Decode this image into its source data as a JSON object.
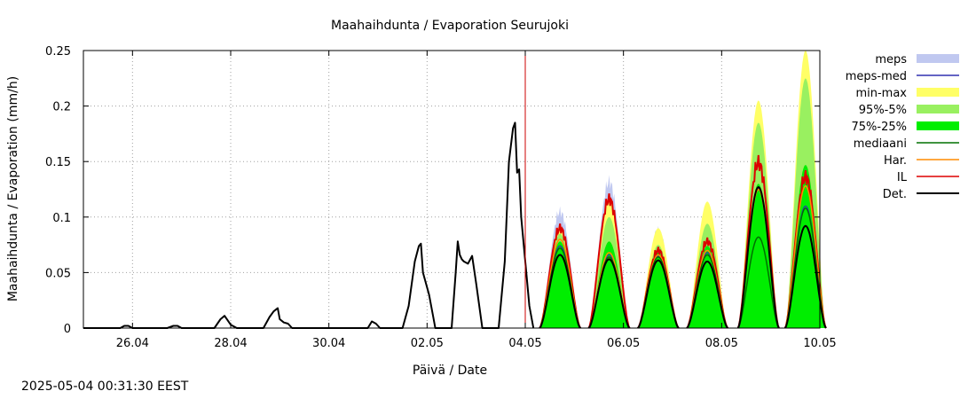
{
  "chart_data": {
    "type": "area",
    "title": "Maahaihdunta / Evaporation  Seurujoki",
    "xlabel": "Päivä / Date",
    "ylabel": "Maahaihdunta / Evaporation (mm/h)",
    "x_range": [
      "2025-04-25 00:00",
      "2025-05-10 00:00"
    ],
    "ylim": [
      0,
      0.25
    ],
    "y_ticks": [
      0,
      0.05,
      0.1,
      0.15,
      0.2,
      0.25
    ],
    "y_tick_labels": [
      "0",
      "0.05",
      "0.1",
      "0.15",
      "0.2",
      "0.25"
    ],
    "x_ticks": [
      "2025-04-26",
      "2025-04-28",
      "2025-04-30",
      "2025-05-02",
      "2025-05-04",
      "2025-05-06",
      "2025-05-08",
      "2025-05-10"
    ],
    "x_tick_labels": [
      "26.04",
      "28.04",
      "30.04",
      "02.05",
      "04.05",
      "06.05",
      "08.05",
      "10.05"
    ],
    "grid": true,
    "legend_position": "right",
    "forecast_start": "2025-05-04 00:00",
    "forecast_start_color": "#cc0000",
    "observed": {
      "name": "Det.",
      "color": "#000000",
      "points": [
        [
          "2025-04-25 00:00",
          0
        ],
        [
          "2025-04-25 18:00",
          0
        ],
        [
          "2025-04-25 20:00",
          0.002
        ],
        [
          "2025-04-25 22:00",
          0.002
        ],
        [
          "2025-04-26 00:00",
          0
        ],
        [
          "2025-04-26 17:00",
          0
        ],
        [
          "2025-04-26 20:00",
          0.002
        ],
        [
          "2025-04-26 22:00",
          0.002
        ],
        [
          "2025-04-27 00:00",
          0
        ],
        [
          "2025-04-27 16:00",
          0
        ],
        [
          "2025-04-27 19:00",
          0.008
        ],
        [
          "2025-04-27 21:00",
          0.011
        ],
        [
          "2025-04-28 00:00",
          0.003
        ],
        [
          "2025-04-28 03:00",
          0
        ],
        [
          "2025-04-28 16:00",
          0
        ],
        [
          "2025-04-28 19:00",
          0.01
        ],
        [
          "2025-04-28 21:00",
          0.015
        ],
        [
          "2025-04-28 23:00",
          0.018
        ],
        [
          "2025-04-29 00:00",
          0.008
        ],
        [
          "2025-04-29 02:00",
          0.005
        ],
        [
          "2025-04-29 04:00",
          0.004
        ],
        [
          "2025-04-29 06:00",
          0
        ],
        [
          "2025-04-30 19:00",
          0
        ],
        [
          "2025-04-30 21:00",
          0.006
        ],
        [
          "2025-04-30 23:00",
          0.004
        ],
        [
          "2025-05-01 01:00",
          0
        ],
        [
          "2025-05-01 12:00",
          0
        ],
        [
          "2025-05-01 15:00",
          0.02
        ],
        [
          "2025-05-01 18:00",
          0.06
        ],
        [
          "2025-05-01 20:00",
          0.074
        ],
        [
          "2025-05-01 21:00",
          0.076
        ],
        [
          "2025-05-01 22:00",
          0.05
        ],
        [
          "2025-05-02 01:00",
          0.03
        ],
        [
          "2025-05-02 03:00",
          0.01
        ],
        [
          "2025-05-02 04:00",
          0
        ],
        [
          "2025-05-02 12:00",
          0
        ],
        [
          "2025-05-02 14:00",
          0.05
        ],
        [
          "2025-05-02 15:00",
          0.078
        ],
        [
          "2025-05-02 16:00",
          0.066
        ],
        [
          "2025-05-02 17:00",
          0.062
        ],
        [
          "2025-05-02 18:00",
          0.06
        ],
        [
          "2025-05-02 20:00",
          0.058
        ],
        [
          "2025-05-02 22:00",
          0.065
        ],
        [
          "2025-05-03 00:00",
          0.04
        ],
        [
          "2025-05-03 03:00",
          0
        ],
        [
          "2025-05-03 11:00",
          0
        ],
        [
          "2025-05-03 14:00",
          0.06
        ],
        [
          "2025-05-03 16:00",
          0.15
        ],
        [
          "2025-05-03 18:00",
          0.18
        ],
        [
          "2025-05-03 19:00",
          0.185
        ],
        [
          "2025-05-03 20:00",
          0.14
        ],
        [
          "2025-05-03 21:00",
          0.143
        ],
        [
          "2025-05-03 22:00",
          0.1
        ],
        [
          "2025-05-04 00:00",
          0.06
        ],
        [
          "2025-05-04 02:00",
          0.02
        ],
        [
          "2025-05-04 04:00",
          0
        ]
      ]
    },
    "forecast_days": [
      {
        "date": "2025-05-04",
        "peak_hour": 17,
        "half_width_h": 10,
        "meps": 0.105,
        "min_max": 0.092,
        "p95_5": 0.085,
        "p75_25": 0.078,
        "il": 0.09,
        "har": 0.08,
        "median": 0.072,
        "meps_med": 0.074,
        "det": 0.066
      },
      {
        "date": "2025-05-05",
        "peak_hour": 17,
        "half_width_h": 10,
        "meps": 0.132,
        "min_max": 0.117,
        "p95_5": 0.1,
        "p75_25": 0.078,
        "il": 0.116,
        "har": 0.068,
        "median": 0.064,
        "meps_med": 0.066,
        "det": 0.062
      },
      {
        "date": "2025-05-06",
        "peak_hour": 17,
        "half_width_h": 10,
        "meps": 0.088,
        "min_max": 0.09,
        "p95_5": 0.075,
        "p75_25": 0.068,
        "il": 0.07,
        "har": 0.066,
        "median": 0.064,
        "meps_med": 0.065,
        "det": 0.061
      },
      {
        "date": "2025-05-07",
        "peak_hour": 17,
        "half_width_h": 10,
        "meps": 0.1,
        "min_max": 0.114,
        "p95_5": 0.094,
        "p75_25": 0.074,
        "il": 0.078,
        "har": 0.07,
        "median": 0.066,
        "meps_med": 0.068,
        "det": 0.06
      },
      {
        "date": "2025-05-08",
        "peak_hour": 18,
        "half_width_h": 10,
        "meps": 0.19,
        "min_max": 0.205,
        "p95_5": 0.185,
        "p75_25": 0.13,
        "il": 0.149,
        "har": 0.125,
        "median": 0.082,
        "meps_med": 0.126,
        "det": 0.127
      },
      {
        "date": "2025-05-09",
        "peak_hour": 17,
        "half_width_h": 10,
        "meps": 0.235,
        "min_max": 0.25,
        "p95_5": 0.225,
        "p75_25": 0.147,
        "il": 0.136,
        "har": 0.128,
        "median": 0.108,
        "meps_med": 0.11,
        "det": 0.092
      }
    ],
    "legend": [
      {
        "name": "meps",
        "kind": "fill",
        "color": "#c0c8f0"
      },
      {
        "name": "meps-med",
        "kind": "line",
        "color": "#3030b0"
      },
      {
        "name": "min-max",
        "kind": "fill",
        "color": "#ffff66"
      },
      {
        "name": "95%-5%",
        "kind": "fill",
        "color": "#99f060"
      },
      {
        "name": "75%-25%",
        "kind": "fill",
        "color": "#00ee00"
      },
      {
        "name": "mediaani",
        "kind": "line",
        "color": "#007000"
      },
      {
        "name": "Har.",
        "kind": "line",
        "color": "#ff8c00"
      },
      {
        "name": "IL",
        "kind": "line",
        "color": "#dd0000"
      },
      {
        "name": "Det.",
        "kind": "line",
        "color": "#000000"
      }
    ]
  },
  "timestamp": "2025-05-04 00:31:30 EEST"
}
